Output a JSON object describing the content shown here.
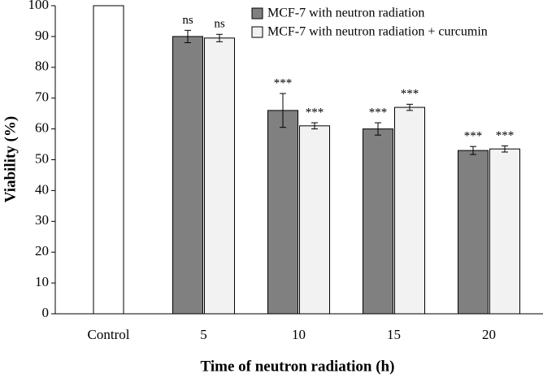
{
  "chart_data": {
    "type": "bar",
    "x_label": "Time of neutron radiation (h)",
    "y_label": "Viability (%)",
    "categories": [
      "Control",
      "5",
      "10",
      "15",
      "20"
    ],
    "control_value": 100,
    "control_color": "#ffffff",
    "series": [
      {
        "name": "MCF-7 with neutron radiation",
        "color": "#808080",
        "values": [
          null,
          90,
          66,
          60,
          53
        ],
        "errors": [
          null,
          2,
          5.5,
          2,
          1.3
        ],
        "annotations": [
          null,
          "ns",
          "***",
          "***",
          "***"
        ]
      },
      {
        "name": "MCF-7 with neutron radiation + curcumin",
        "color": "#f2f2f2",
        "values": [
          null,
          89.5,
          61,
          67,
          53.5
        ],
        "errors": [
          null,
          1.2,
          1,
          1,
          1
        ],
        "annotations": [
          null,
          "ns",
          "***",
          "***",
          "***"
        ]
      }
    ],
    "ylim": [
      0,
      100
    ],
    "yticks": [
      0,
      10,
      20,
      30,
      40,
      50,
      60,
      70,
      80,
      90,
      100
    ]
  }
}
